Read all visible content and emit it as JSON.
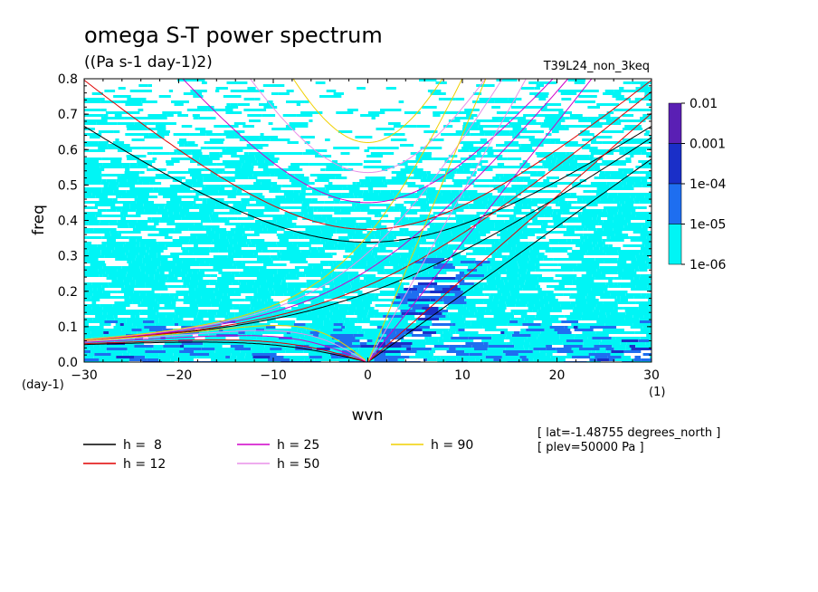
{
  "chart_data": {
    "type": "heatmap",
    "title": "omega S-T power spectrum",
    "subtitle": "((Pa s-1 day-1)2)",
    "run_label": "T39L24_non_3keq",
    "xlabel": "wvn",
    "ylabel": "freq",
    "x_unit": "(1)",
    "y_unit": "(day-1)",
    "xlim": [
      -30,
      30
    ],
    "ylim": [
      0,
      0.8
    ],
    "x_ticks": [
      "-30",
      "-20",
      "-10",
      "0",
      "10",
      "20",
      "30"
    ],
    "y_ticks": [
      "0.0",
      "0.1",
      "0.2",
      "0.3",
      "0.4",
      "0.5",
      "0.6",
      "0.7",
      "0.8"
    ],
    "colorbar": {
      "labels": [
        "0.01",
        "0.001",
        "1e-04",
        "1e-05",
        "1e-06"
      ],
      "colors": [
        "#5a1fb4",
        "#1a2fc8",
        "#1e6ef0",
        "#00f5f5"
      ]
    },
    "dispersion_curves": [
      {
        "name": "h =  8",
        "h": 8,
        "color": "#000000"
      },
      {
        "name": "h = 12",
        "h": 12,
        "color": "#e00000"
      },
      {
        "name": "h = 25",
        "h": 25,
        "color": "#d000c8"
      },
      {
        "name": "h = 50",
        "h": 50,
        "color": "#e890e8"
      },
      {
        "name": "h = 90",
        "h": 90,
        "color": "#f0d000"
      }
    ],
    "annotations": [
      "[ lat=-1.48755 degrees_north ]",
      "[ plev=50000 Pa ]"
    ],
    "grid": false,
    "legend_position": "bottom-left"
  }
}
